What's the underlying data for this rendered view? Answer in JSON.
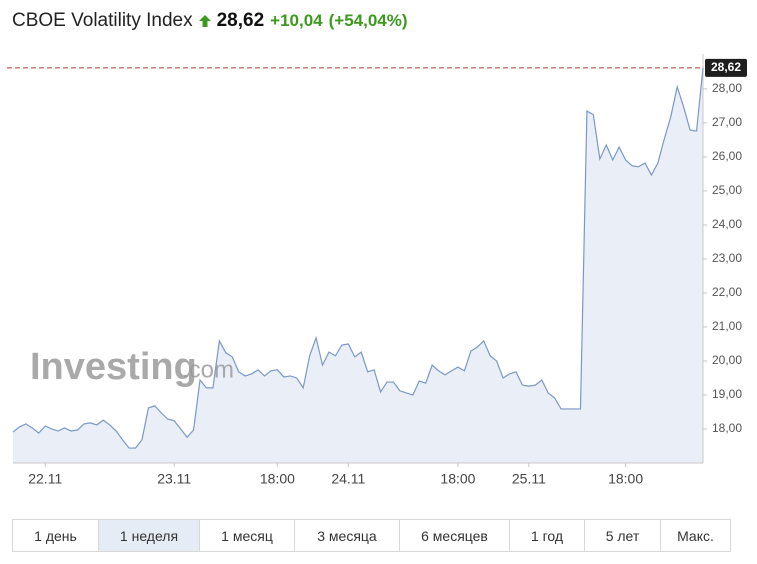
{
  "chart_data": {
    "type": "line",
    "title": "CBOE Volatility Index",
    "price": "28,62",
    "change": "+10,04",
    "change_percent": "(+54,04%)",
    "watermark": "Investing",
    "watermark_suffix": ".com",
    "categories": [
      null,
      null,
      null,
      null,
      null,
      "22.11",
      null,
      null,
      null,
      null,
      null,
      null,
      null,
      null,
      null,
      null,
      null,
      null,
      null,
      null,
      null,
      null,
      null,
      null,
      null,
      "23.11",
      null,
      null,
      null,
      null,
      null,
      null,
      null,
      null,
      null,
      null,
      null,
      null,
      null,
      null,
      null,
      "18:00",
      null,
      null,
      null,
      null,
      null,
      null,
      null,
      null,
      null,
      null,
      "24.11",
      null,
      null,
      null,
      null,
      null,
      null,
      null,
      null,
      null,
      null,
      null,
      null,
      null,
      null,
      null,
      null,
      "18:00",
      null,
      null,
      null,
      null,
      null,
      null,
      null,
      null,
      null,
      null,
      "25.11",
      null,
      null,
      null,
      null,
      null,
      null,
      null,
      null,
      null,
      null,
      null,
      null,
      null,
      null,
      "18:00",
      null,
      null,
      null,
      null,
      null,
      null,
      null,
      null,
      null,
      null,
      null,
      null
    ],
    "series": [
      {
        "color": "#7b98c6",
        "fill": "#e9eef7",
        "values": [
          17.91,
          18.06,
          18.15,
          18.03,
          17.88,
          18.09,
          18.0,
          17.94,
          18.03,
          17.94,
          17.97,
          18.15,
          18.18,
          18.12,
          18.26,
          18.12,
          17.94,
          17.68,
          17.44,
          17.44,
          17.68,
          18.62,
          18.68,
          18.47,
          18.29,
          18.24,
          18.0,
          17.76,
          17.97,
          19.44,
          19.21,
          19.21,
          20.59,
          20.24,
          20.12,
          19.68,
          19.56,
          19.62,
          19.74,
          19.56,
          19.71,
          19.74,
          19.53,
          19.56,
          19.5,
          19.21,
          20.15,
          20.68,
          19.88,
          20.26,
          20.15,
          20.47,
          20.5,
          20.12,
          20.26,
          19.68,
          19.74,
          19.09,
          19.38,
          19.38,
          19.12,
          19.06,
          19.0,
          19.41,
          19.35,
          19.88,
          19.71,
          19.59,
          19.71,
          19.82,
          19.71,
          20.29,
          20.41,
          20.59,
          20.15,
          20.0,
          19.5,
          19.62,
          19.68,
          19.29,
          19.26,
          19.29,
          19.44,
          19.06,
          18.91,
          18.59,
          18.59,
          18.59,
          18.59,
          27.35,
          27.24,
          25.94,
          26.35,
          25.91,
          26.29,
          25.91,
          25.74,
          25.71,
          25.82,
          25.47,
          25.82,
          26.53,
          27.18,
          28.06,
          27.47,
          26.79,
          26.76,
          28.62
        ]
      }
    ],
    "price_line": {
      "value": 28.62,
      "label": "28,62",
      "color": "#b03a2e"
    },
    "ylim": [
      17.0,
      28.85
    ],
    "yticks": [
      {
        "value": 18,
        "label": "18,00"
      },
      {
        "value": 19,
        "label": "19,00"
      },
      {
        "value": 20,
        "label": "20,00"
      },
      {
        "value": 21,
        "label": "21,00"
      },
      {
        "value": 22,
        "label": "22,00"
      },
      {
        "value": 23,
        "label": "23,00"
      },
      {
        "value": 24,
        "label": "24,00"
      },
      {
        "value": 25,
        "label": "25,00"
      },
      {
        "value": 26,
        "label": "26,00"
      },
      {
        "value": 27,
        "label": "27,00"
      },
      {
        "value": 28,
        "label": "28,00"
      }
    ],
    "buttons": [
      "1 день",
      "1 неделя",
      "1 месяц",
      "3 месяца",
      "6 месяцев",
      "1 год",
      "5 лет",
      "Макс."
    ],
    "active_button": 1
  }
}
